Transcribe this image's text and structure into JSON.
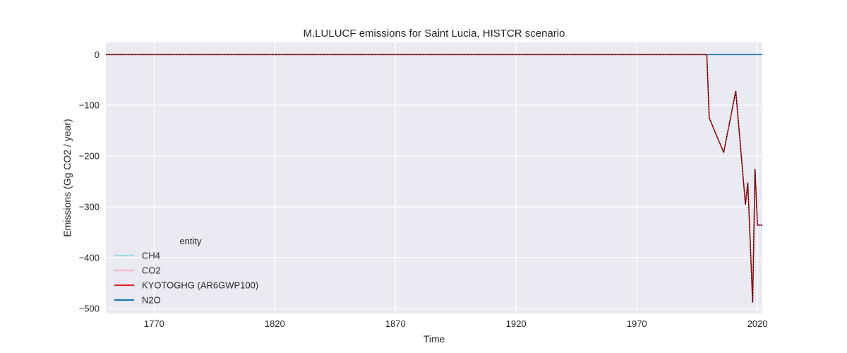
{
  "chart_data": {
    "type": "line",
    "title": "M.LULUCF emissions for Saint Lucia, HISTCR scenario",
    "xlabel": "Time",
    "ylabel": "Emissions (Gg CO2 / year)",
    "xlim": [
      1750,
      2022
    ],
    "ylim": [
      -510,
      24
    ],
    "xticks": [
      1770,
      1820,
      1870,
      1920,
      1970,
      2020
    ],
    "yticks": [
      0,
      -100,
      -200,
      -300,
      -400,
      -500
    ],
    "grid": true,
    "legend": {
      "title": "entity",
      "placement": "lower-left",
      "entries": [
        {
          "name": "CH4",
          "color": "#9edae5"
        },
        {
          "name": "CO2",
          "color": "#f7b6d2"
        },
        {
          "name": "KYOTOGHG (AR6GWP100)",
          "color": "#d62728"
        },
        {
          "name": "N2O",
          "color": "#1f77b4"
        }
      ]
    },
    "series": [
      {
        "name": "CH4",
        "color": "#9edae5",
        "style": "solid",
        "points": [
          [
            1750,
            0
          ],
          [
            2022,
            0
          ]
        ]
      },
      {
        "name": "N2O",
        "color": "#1f77b4",
        "style": "solid",
        "points": [
          [
            1750,
            0
          ],
          [
            2022,
            0
          ]
        ]
      },
      {
        "name": "CO2",
        "color": "#f7b6d2",
        "style": "solid",
        "points": [
          [
            1750,
            0
          ],
          [
            1999,
            0
          ],
          [
            2000,
            -125
          ],
          [
            2006,
            -193
          ],
          [
            2011,
            -72
          ],
          [
            2015,
            -295
          ],
          [
            2016,
            -253
          ],
          [
            2018,
            -488
          ],
          [
            2019,
            -226
          ],
          [
            2020,
            -336
          ],
          [
            2022,
            -336
          ]
        ]
      },
      {
        "name": "KYOTOGHG (AR6GWP100)",
        "color": "#d62728",
        "style": "solid",
        "points": [
          [
            1750,
            0
          ],
          [
            1999,
            0
          ],
          [
            2000,
            -125
          ],
          [
            2006,
            -193
          ],
          [
            2011,
            -72
          ],
          [
            2015,
            -295
          ],
          [
            2016,
            -253
          ],
          [
            2018,
            -488
          ],
          [
            2019,
            -226
          ],
          [
            2020,
            -336
          ],
          [
            2022,
            -336
          ]
        ]
      },
      {
        "name": "",
        "color": "#000000",
        "style": "dotted",
        "points": [
          [
            1750,
            0
          ],
          [
            1999,
            0
          ],
          [
            2000,
            -125
          ],
          [
            2006,
            -193
          ],
          [
            2011,
            -72
          ],
          [
            2015,
            -295
          ],
          [
            2016,
            -253
          ],
          [
            2018,
            -488
          ],
          [
            2019,
            -226
          ],
          [
            2020,
            -336
          ],
          [
            2022,
            -336
          ]
        ]
      }
    ]
  }
}
